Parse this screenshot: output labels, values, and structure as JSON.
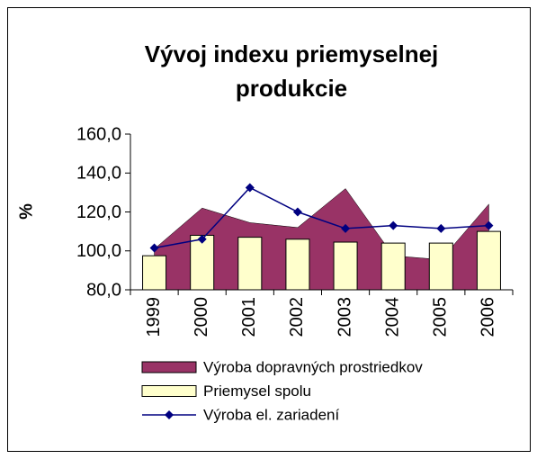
{
  "chart_data": {
    "type": "combo",
    "title": [
      "Vývoj indexu priemyselnej",
      "produkcie"
    ],
    "y_label": "%",
    "categories": [
      "1999",
      "2000",
      "2001",
      "2002",
      "2003",
      "2004",
      "2005",
      "2006"
    ],
    "series": [
      {
        "name": "Výroba dopravných prostriedkov",
        "type": "area",
        "color": "#993366",
        "values": [
          101,
          122,
          114.5,
          112,
          132,
          97.5,
          95.5,
          124
        ]
      },
      {
        "name": "Priemysel spolu",
        "type": "bar",
        "color": "#ffffcc",
        "values": [
          97.5,
          108,
          107,
          106,
          104.5,
          104,
          104,
          110
        ]
      },
      {
        "name": "Výroba el. zariadení",
        "type": "line",
        "color": "#000080",
        "values": [
          101.5,
          106,
          132.5,
          120,
          111.5,
          113,
          111.5,
          113
        ]
      }
    ],
    "ylim": [
      80,
      160
    ],
    "yticks": [
      {
        "value": 80,
        "label": "80,0"
      },
      {
        "value": 100,
        "label": "100,0"
      },
      {
        "value": 120,
        "label": "120,0"
      },
      {
        "value": 140,
        "label": "140,0"
      },
      {
        "value": 160,
        "label": "160,0"
      }
    ],
    "grid": false
  }
}
